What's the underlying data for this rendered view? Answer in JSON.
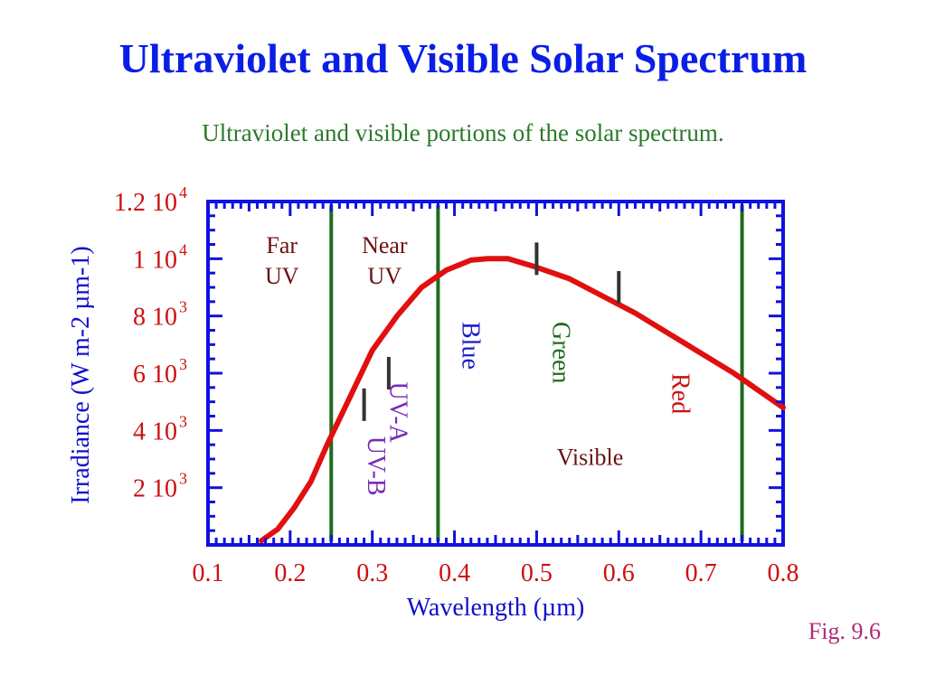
{
  "slide": {
    "title": "Ultraviolet and Visible Solar Spectrum",
    "subtitle": "Ultraviolet and visible portions of the solar spectrum.",
    "figure_label": "Fig. 9.6"
  },
  "chart_data": {
    "type": "line",
    "xlabel": "Wavelength (µm)",
    "ylabel": "Irradiance (W m-2 µm-1)",
    "xlim": [
      0.1,
      0.8
    ],
    "ylim": [
      0,
      12000
    ],
    "x_ticks": [
      {
        "value": 0.1,
        "label": "0.1"
      },
      {
        "value": 0.2,
        "label": "0.2"
      },
      {
        "value": 0.3,
        "label": "0.3"
      },
      {
        "value": 0.4,
        "label": "0.4"
      },
      {
        "value": 0.5,
        "label": "0.5"
      },
      {
        "value": 0.6,
        "label": "0.6"
      },
      {
        "value": 0.7,
        "label": "0.7"
      },
      {
        "value": 0.8,
        "label": "0.8"
      }
    ],
    "y_ticks": [
      {
        "value": 2000,
        "mantissa": "2 10",
        "exponent": "3"
      },
      {
        "value": 4000,
        "mantissa": "4 10",
        "exponent": "3"
      },
      {
        "value": 6000,
        "mantissa": "6 10",
        "exponent": "3"
      },
      {
        "value": 8000,
        "mantissa": "8 10",
        "exponent": "3"
      },
      {
        "value": 10000,
        "mantissa": "1 10",
        "exponent": "4"
      },
      {
        "value": 12000,
        "mantissa": "1.2 10",
        "exponent": "4"
      }
    ],
    "series": [
      {
        "color": "#e01010",
        "x": [
          0.165,
          0.185,
          0.205,
          0.225,
          0.245,
          0.27,
          0.3,
          0.33,
          0.36,
          0.39,
          0.42,
          0.44,
          0.465,
          0.5,
          0.54,
          0.58,
          0.62,
          0.66,
          0.7,
          0.74,
          0.77,
          0.8
        ],
        "y": [
          150,
          550,
          1300,
          2200,
          3500,
          5000,
          6800,
          8000,
          9000,
          9600,
          9950,
          10000,
          10000,
          9700,
          9300,
          8700,
          8100,
          7400,
          6700,
          6000,
          5400,
          4800
        ]
      }
    ],
    "boundaries": [
      {
        "x": 0.25,
        "color": "#1f6b1f"
      },
      {
        "x": 0.38,
        "color": "#1f6b1f"
      },
      {
        "x": 0.75,
        "color": "#1f6b1f"
      }
    ],
    "markers": [
      {
        "x": 0.29,
        "y": 4900
      },
      {
        "x": 0.32,
        "y": 6000
      },
      {
        "x": 0.5,
        "y": 10000
      },
      {
        "x": 0.6,
        "y": 9000
      }
    ],
    "region_labels": [
      {
        "lines": [
          "Far",
          "UV"
        ],
        "x": 0.19,
        "y": 10200,
        "color": "#6b1010",
        "rotate": 0
      },
      {
        "lines": [
          "Near",
          "UV"
        ],
        "x": 0.315,
        "y": 10200,
        "color": "#6b1010",
        "rotate": 0
      },
      {
        "lines": [
          "Visible"
        ],
        "x": 0.565,
        "y": 2800,
        "color": "#6b1010",
        "rotate": 0
      },
      {
        "lines": [
          "Blue"
        ],
        "x": 0.41,
        "y": 7800,
        "color": "#1a1acc",
        "rotate": 90
      },
      {
        "lines": [
          "Green"
        ],
        "x": 0.52,
        "y": 7800,
        "color": "#1f6b1f",
        "rotate": 90
      },
      {
        "lines": [
          "Red"
        ],
        "x": 0.665,
        "y": 6000,
        "color": "#cc1010",
        "rotate": 90
      },
      {
        "lines": [
          "UV-A"
        ],
        "x": 0.322,
        "y": 5700,
        "color": "#7a2ab8",
        "rotate": 90
      },
      {
        "lines": [
          "UV-B"
        ],
        "x": 0.295,
        "y": 3800,
        "color": "#7a2ab8",
        "rotate": 90
      }
    ],
    "colors": {
      "frame": "#1010e0",
      "axis_text": "#cc1010",
      "axis_label": "#1010cc"
    }
  }
}
